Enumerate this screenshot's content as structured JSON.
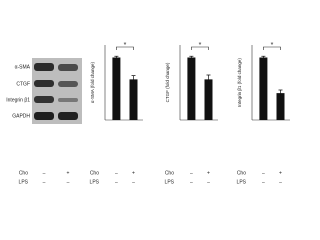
{
  "blot": {
    "proteins": [
      "α-SMA",
      "CTGF",
      "Integrin β1",
      "GAPDH"
    ],
    "rows": [
      {
        "label": "Cho",
        "values": [
          "–",
          "+"
        ]
      },
      {
        "label": "LPS",
        "values": [
          "–",
          "–"
        ]
      }
    ]
  },
  "chart_data": [
    {
      "type": "bar",
      "ylabel": "α-SMA (fold change)",
      "values": [
        1.0,
        0.65
      ],
      "errors": [
        0.02,
        0.06
      ],
      "color": "#111111",
      "ylim": [
        0,
        1.2
      ],
      "annotation": "*",
      "rows": [
        {
          "label": "Cho",
          "values": [
            "–",
            "+"
          ]
        },
        {
          "label": "LPS",
          "values": [
            "–",
            "–"
          ]
        }
      ]
    },
    {
      "type": "bar",
      "ylabel": "CTGF (fold change)",
      "values": [
        1.0,
        0.65
      ],
      "errors": [
        0.02,
        0.07
      ],
      "color": "#111111",
      "ylim": [
        0,
        1.2
      ],
      "annotation": "*",
      "rows": [
        {
          "label": "Cho",
          "values": [
            "–",
            "+"
          ]
        },
        {
          "label": "LPS",
          "values": [
            "–",
            "–"
          ]
        }
      ]
    },
    {
      "type": "bar",
      "ylabel": "Integrin β1 (fold change)",
      "values": [
        1.0,
        0.43
      ],
      "errors": [
        0.02,
        0.05
      ],
      "color": "#111111",
      "ylim": [
        0,
        1.2
      ],
      "annotation": "*",
      "rows": [
        {
          "label": "Cho",
          "values": [
            "–",
            "+"
          ]
        },
        {
          "label": "LPS",
          "values": [
            "–",
            "–"
          ]
        }
      ]
    }
  ]
}
